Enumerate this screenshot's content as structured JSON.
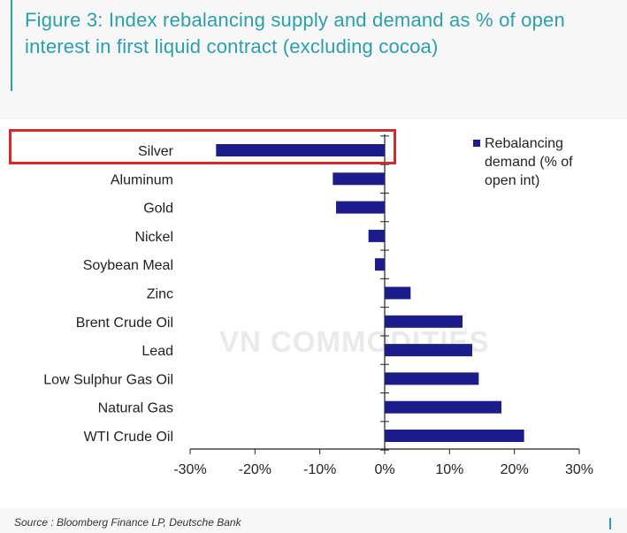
{
  "title": "Figure 3: Index rebalancing supply and demand as % of open interest in first liquid contract (excluding cocoa)",
  "source": "Source : Bloomberg Finance LP, Deutsche Bank",
  "watermark": "VN COMMODITIES",
  "colors": {
    "bar": "#1c1c8c",
    "title": "#2a9fb0",
    "highlight": "#d42a2a"
  },
  "chart_data": {
    "type": "bar",
    "orientation": "horizontal",
    "categories": [
      "Silver",
      "Aluminum",
      "Gold",
      "Nickel",
      "Soybean Meal",
      "Zinc",
      "Brent Crude Oil",
      "Lead",
      "Low Sulphur Gas Oil",
      "Natural Gas",
      "WTI Crude Oil"
    ],
    "series": [
      {
        "name": "Rebalancing demand (% of open int)",
        "values": [
          -26,
          -8,
          -7.5,
          -2.5,
          -1.5,
          4,
          12,
          13.5,
          14.5,
          18,
          21.5
        ]
      }
    ],
    "xlim": [
      -30,
      30
    ],
    "xticks": [
      -30,
      -20,
      -10,
      0,
      10,
      20,
      30
    ],
    "xtick_labels": [
      "-30%",
      "-20%",
      "-10%",
      "0%",
      "10%",
      "20%",
      "30%"
    ],
    "legend_lines": [
      "Rebalancing",
      "demand (% of",
      "open int)"
    ],
    "legend_position": "top-right",
    "highlighted_category": "Silver"
  }
}
